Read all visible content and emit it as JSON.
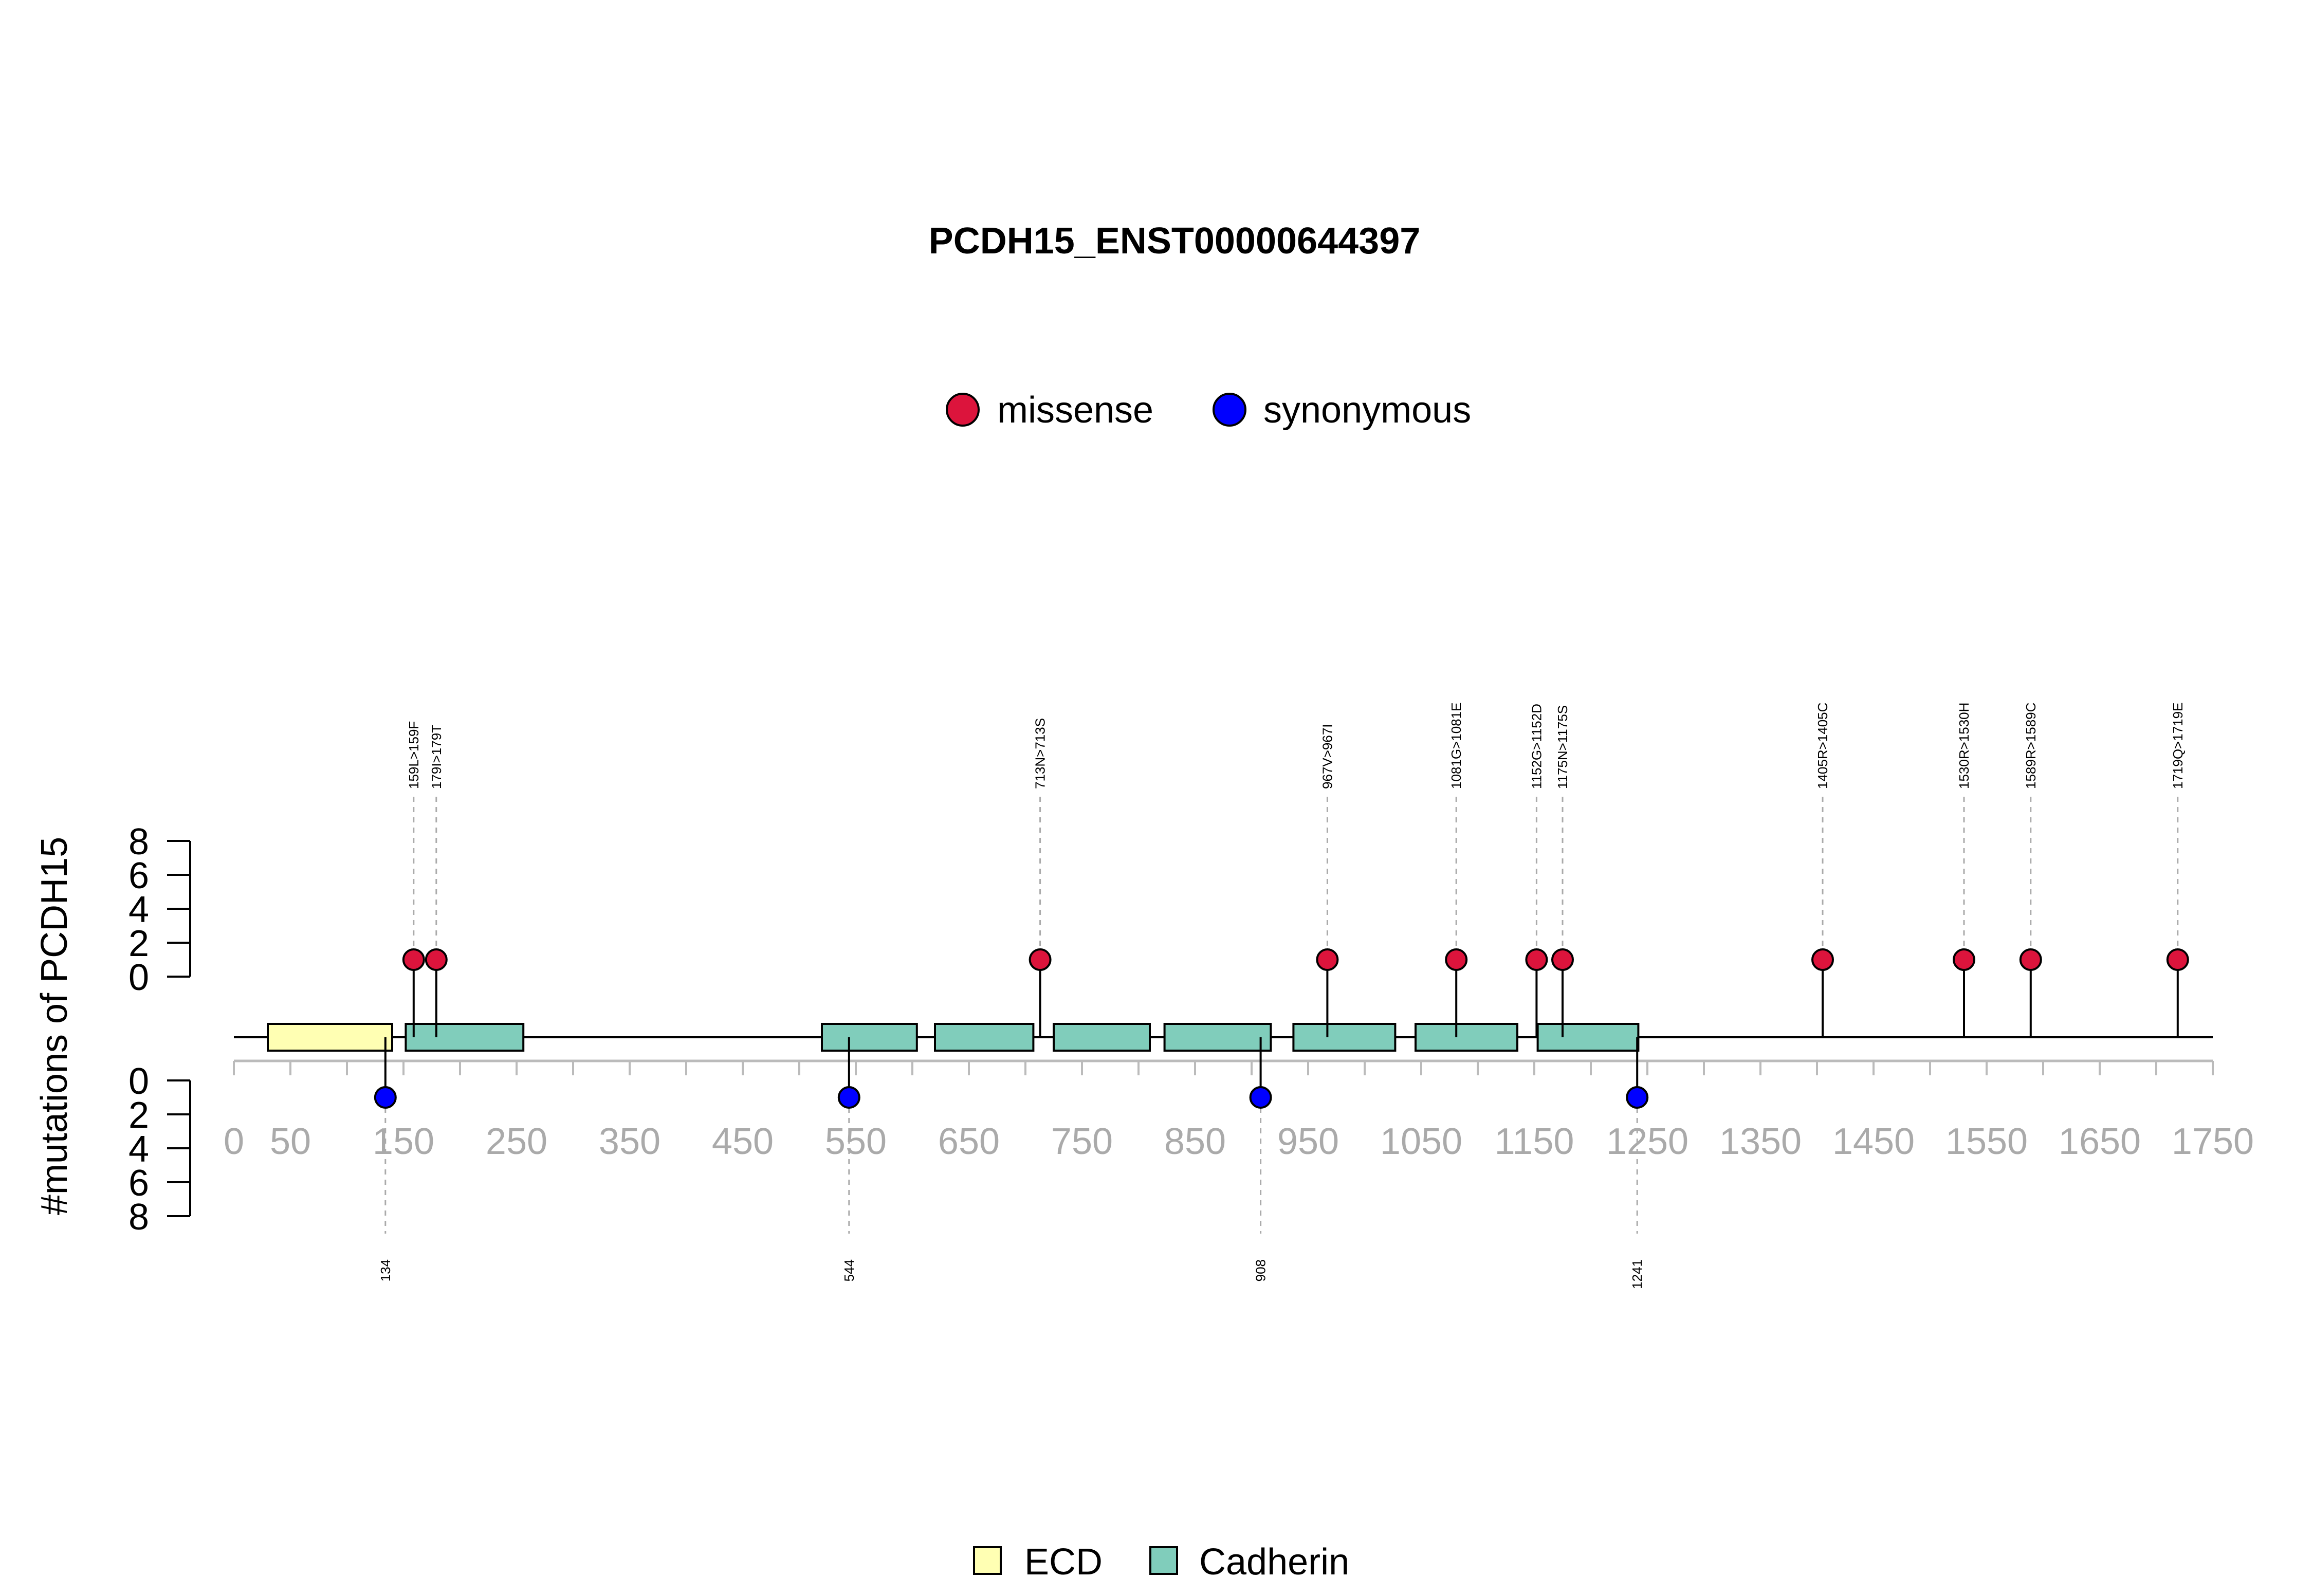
{
  "chart_data": {
    "type": "lollipop",
    "title": "PCDH15_ENST00000644397",
    "ylabel": "#mutations of PCDH15",
    "xlim": [
      0,
      1750
    ],
    "xticks": [
      0,
      50,
      150,
      250,
      350,
      450,
      550,
      650,
      750,
      850,
      950,
      1050,
      1150,
      1250,
      1350,
      1450,
      1550,
      1650,
      1750
    ],
    "yticks": [
      0,
      2,
      4,
      6,
      8
    ],
    "ylim": [
      0,
      8
    ],
    "mutation_legend": [
      {
        "name": "missense",
        "color": "#dc143c"
      },
      {
        "name": "synonymous",
        "color": "#0000ff"
      }
    ],
    "domain_legend": [
      {
        "name": "ECD",
        "color": "#ffffb3"
      },
      {
        "name": "Cadherin",
        "color": "#80cdbb"
      }
    ],
    "domains": [
      {
        "name": "ECD",
        "start": 30,
        "end": 140
      },
      {
        "name": "Cadherin",
        "start": 152,
        "end": 256
      },
      {
        "name": "Cadherin",
        "start": 520,
        "end": 604
      },
      {
        "name": "Cadherin",
        "start": 620,
        "end": 707
      },
      {
        "name": "Cadherin",
        "start": 725,
        "end": 810
      },
      {
        "name": "Cadherin",
        "start": 823,
        "end": 917
      },
      {
        "name": "Cadherin",
        "start": 937,
        "end": 1027
      },
      {
        "name": "Cadherin",
        "start": 1045,
        "end": 1135
      },
      {
        "name": "Cadherin",
        "start": 1153,
        "end": 1242
      }
    ],
    "missense": [
      {
        "pos": 159,
        "count": 1,
        "label": "159L>159F"
      },
      {
        "pos": 179,
        "count": 1,
        "label": "179I>179T"
      },
      {
        "pos": 713,
        "count": 1,
        "label": "713N>713S"
      },
      {
        "pos": 967,
        "count": 1,
        "label": "967V>967I"
      },
      {
        "pos": 1081,
        "count": 1,
        "label": "1081G>1081E"
      },
      {
        "pos": 1152,
        "count": 1,
        "label": "1152G>1152D"
      },
      {
        "pos": 1175,
        "count": 1,
        "label": "1175N>1175S"
      },
      {
        "pos": 1405,
        "count": 1,
        "label": "1405R>1405C"
      },
      {
        "pos": 1530,
        "count": 1,
        "label": "1530R>1530H"
      },
      {
        "pos": 1589,
        "count": 1,
        "label": "1589R>1589C"
      },
      {
        "pos": 1719,
        "count": 1,
        "label": "1719Q>1719E"
      }
    ],
    "synonymous": [
      {
        "pos": 134,
        "count": 1,
        "label": "134"
      },
      {
        "pos": 544,
        "count": 1,
        "label": "544"
      },
      {
        "pos": 908,
        "count": 1,
        "label": "908"
      },
      {
        "pos": 1241,
        "count": 1,
        "label": "1241"
      }
    ]
  }
}
